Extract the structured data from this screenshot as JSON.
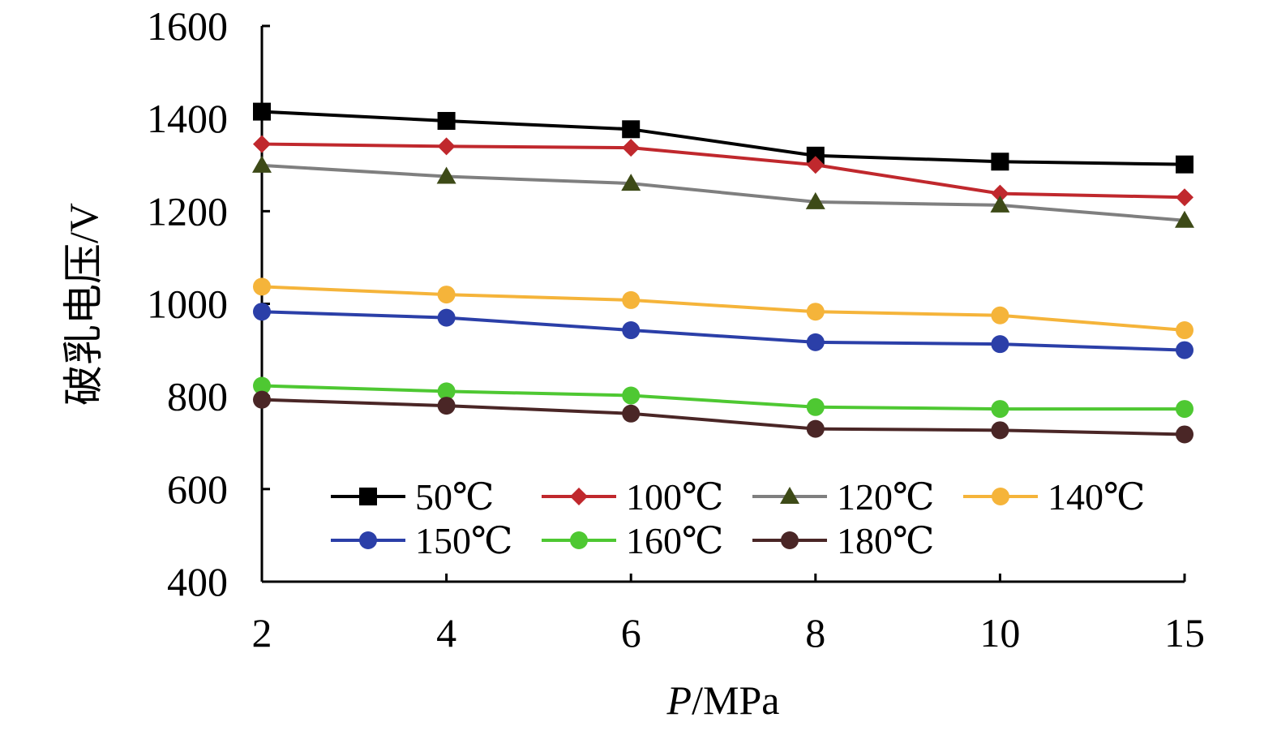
{
  "chart_data": {
    "type": "line",
    "xlabel_var": "P",
    "xlabel_unit": "/MPa",
    "ylabel": "破乳电压/V",
    "categories": [
      "2",
      "4",
      "6",
      "8",
      "10",
      "15"
    ],
    "ylim": [
      400,
      1600
    ],
    "yticks": [
      400,
      600,
      800,
      1000,
      1200,
      1400,
      1600
    ],
    "grid": false,
    "legend_position": "bottom-inside",
    "series": [
      {
        "name": "50℃",
        "color": "#000000",
        "marker": "square",
        "values": [
          1415,
          1395,
          1377,
          1320,
          1307,
          1301
        ]
      },
      {
        "name": "100℃",
        "color": "#c0282d",
        "marker": "diamond",
        "values": [
          1345,
          1340,
          1337,
          1300,
          1238,
          1230
        ]
      },
      {
        "name": "120℃",
        "color": "#7f7f7f",
        "marker": "triangle",
        "values": [
          1299,
          1275,
          1260,
          1220,
          1213,
          1180
        ]
      },
      {
        "name": "140℃",
        "color": "#f5b43a",
        "marker": "circle",
        "values": [
          1037,
          1020,
          1008,
          983,
          975,
          943
        ]
      },
      {
        "name": "150℃",
        "color": "#2b3fa8",
        "marker": "circle",
        "values": [
          983,
          970,
          943,
          917,
          913,
          900
        ]
      },
      {
        "name": "160℃",
        "color": "#4ec832",
        "marker": "circle",
        "values": [
          823,
          811,
          802,
          777,
          773,
          773
        ]
      },
      {
        "name": "180℃",
        "color": "#4a2626",
        "marker": "circle",
        "values": [
          793,
          780,
          763,
          730,
          727,
          718
        ]
      }
    ]
  }
}
